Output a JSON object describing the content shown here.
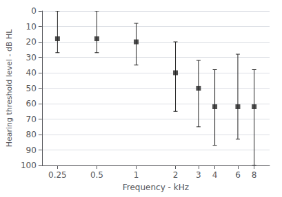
{
  "chart_data": {
    "type": "errorbar",
    "x": [
      0.25,
      0.5,
      1,
      2,
      3,
      4,
      6,
      8
    ],
    "values": [
      18,
      18,
      20,
      40,
      50,
      62,
      62,
      62
    ],
    "mins": [
      0,
      0,
      8,
      20,
      32,
      38,
      28,
      38
    ],
    "maxs": [
      27,
      27,
      35,
      65,
      75,
      87,
      83,
      100
    ],
    "xlabel": "Frequency - kHz",
    "ylabel": "Hearing threshold level - dB HL",
    "log": "x",
    "xlim": [
      0.19,
      10.5
    ],
    "xticks": [
      0.25,
      0.5,
      1,
      2,
      3,
      4,
      6,
      8
    ],
    "ylim": [
      100,
      0
    ],
    "yticks": [
      0,
      10,
      20,
      30,
      40,
      50,
      60,
      70,
      80,
      90,
      100
    ],
    "grid": "y",
    "color": "#222222",
    "marker": "square"
  }
}
